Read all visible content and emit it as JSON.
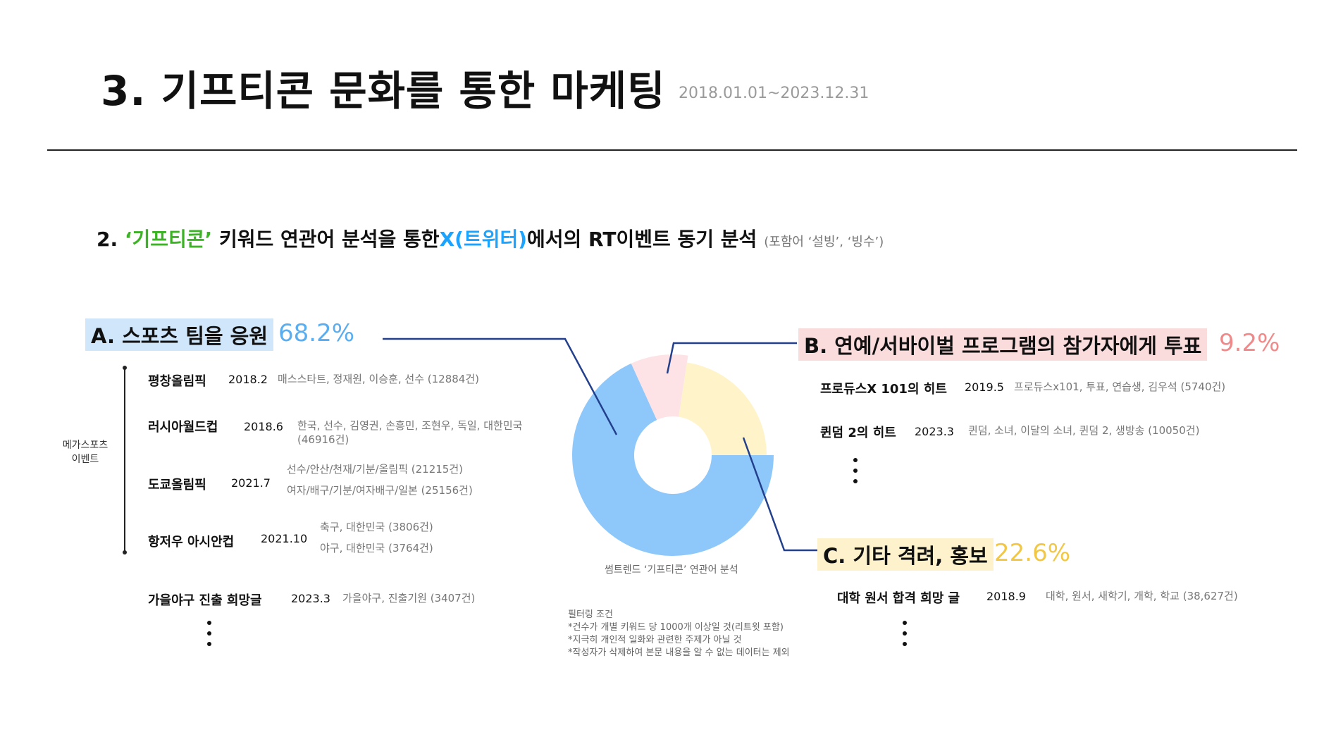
{
  "header": {
    "title": "3. 기프티콘 문화를 통한 마케팅",
    "date_range": "2018.01.01~2023.12.31"
  },
  "subtitle": {
    "prefix": "2.  ",
    "keyword": "‘기프티콘’",
    "middle": " 키워드 연관어 분석을 통한",
    "platform": "X(트위터)",
    "suffix": "에서의 RT이벤트 동기 분석",
    "note": "(포함어 ‘설빙’, ‘빙수’)"
  },
  "categories": {
    "a": {
      "label": "A. 스포츠 팀을 응원",
      "pct": "68.2%"
    },
    "b": {
      "label": "B. 연예/서바이벌 프로그램의 참가자에게 투표",
      "pct": "9.2%"
    },
    "c": {
      "label": "C. 기타 격려, 홍보",
      "pct": "22.6%"
    }
  },
  "mega_label": "메가스포츠 이벤트",
  "sports_events": [
    {
      "name": "평창올림픽",
      "date": "2018.2",
      "keywords": [
        "매스스타트, 정재원, 이승훈, 선수 (12884건)"
      ]
    },
    {
      "name": "러시아월드컵",
      "date": "2018.6",
      "keywords": [
        "한국, 선수, 김영권, 손흥민, 조현우, 독일, 대한민국",
        "(46916건)"
      ]
    },
    {
      "name": "도쿄올림픽",
      "date": "2021.7",
      "keywords": [
        "선수/안산/천재/기분/올림픽 (21215건)",
        "여자/배구/기분/여자배구/일본 (25156건)"
      ]
    },
    {
      "name": "항저우 아시안컵",
      "date": "2021.10",
      "keywords": [
        "축구, 대한민국 (3806건)",
        "야구, 대한민국 (3764건)"
      ]
    },
    {
      "name": "가을야구 진출 희망글",
      "date": "2023.3",
      "keywords": [
        "가을야구, 진출기원 (3407건)"
      ]
    }
  ],
  "b_events": [
    {
      "name": "프로듀스X 101의 히트",
      "date": "2019.5",
      "keywords": "프로듀스x101, 투표, 연습생, 김우석 (5740건)"
    },
    {
      "name": "퀸덤 2의 히트",
      "date": "2023.3",
      "keywords": "퀸덤, 소녀, 이달의 소녀, 퀸덤 2, 생방송 (10050건)"
    }
  ],
  "c_events": [
    {
      "name": "대학 원서 합격 희망 글",
      "date": "2018.9",
      "keywords": "대학, 원서, 새학기, 개학, 학교 (38,627건)"
    }
  ],
  "chart_caption": "썸트렌드 ‘기프티콘’ 연관어 분석",
  "filter": {
    "title": "필터링 조건",
    "rules": [
      "*건수가 개별 키워드 당 1000개 이상일 것(리트윗 포함)",
      "*지극히 개인적 일화와 관련한 주제가 아닐 것",
      "*작성자가 삭제하여 본문 내용을 알 수 없는 데이터는 제외"
    ]
  },
  "chart_data": {
    "type": "pie",
    "variant": "donut",
    "labels": [
      "A. 스포츠 팀을 응원",
      "B. 연예/서바이벌 프로그램의 참가자에게 투표",
      "C. 기타 격려, 홍보"
    ],
    "values": [
      68.2,
      9.2,
      22.6
    ],
    "colors": [
      "#8ec8fb",
      "#fde3e6",
      "#fff4c9"
    ],
    "legend": "none"
  }
}
